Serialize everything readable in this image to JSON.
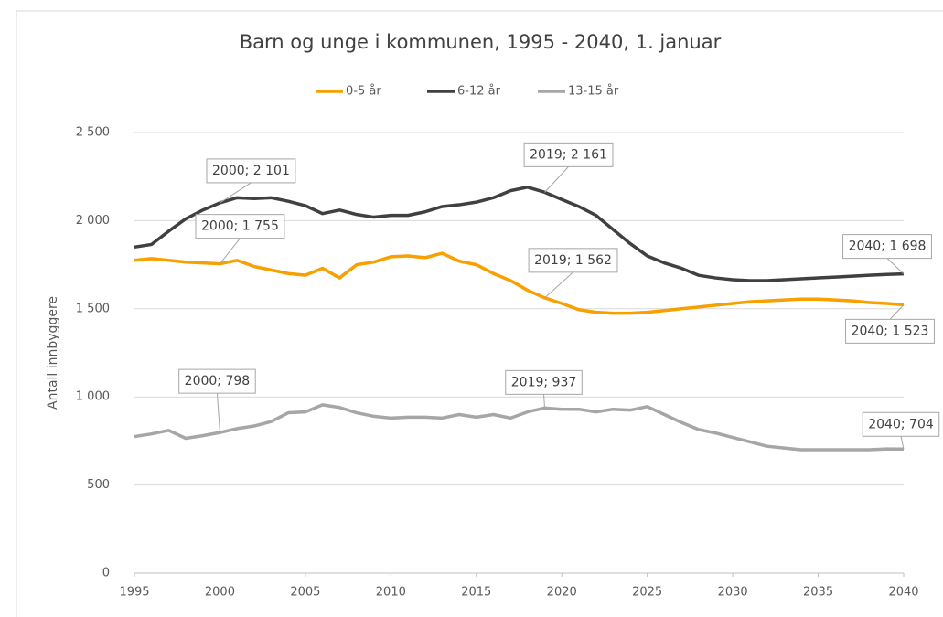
{
  "chart_data": {
    "type": "line",
    "title": "Barn og unge i kommunen, 1995 - 2040, 1. januar",
    "y_label": "Antall innbyggere",
    "x": [
      1995,
      1996,
      1997,
      1998,
      1999,
      2000,
      2001,
      2002,
      2003,
      2004,
      2005,
      2006,
      2007,
      2008,
      2009,
      2010,
      2011,
      2012,
      2013,
      2014,
      2015,
      2016,
      2017,
      2018,
      2019,
      2020,
      2021,
      2022,
      2023,
      2024,
      2025,
      2026,
      2027,
      2028,
      2029,
      2030,
      2031,
      2032,
      2033,
      2034,
      2035,
      2036,
      2037,
      2038,
      2039,
      2040
    ],
    "series": [
      {
        "name": "0-5 år",
        "color": "#f7a000",
        "values": [
          1775,
          1785,
          1775,
          1765,
          1760,
          1755,
          1775,
          1740,
          1720,
          1700,
          1690,
          1730,
          1675,
          1750,
          1765,
          1795,
          1800,
          1790,
          1815,
          1770,
          1750,
          1700,
          1660,
          1605,
          1562,
          1530,
          1495,
          1480,
          1475,
          1475,
          1480,
          1490,
          1500,
          1510,
          1520,
          1530,
          1540,
          1545,
          1550,
          1555,
          1555,
          1550,
          1545,
          1535,
          1530,
          1523
        ]
      },
      {
        "name": "6-12 år",
        "color": "#404040",
        "values": [
          1850,
          1865,
          1940,
          2010,
          2060,
          2101,
          2130,
          2125,
          2130,
          2110,
          2085,
          2040,
          2060,
          2035,
          2020,
          2030,
          2030,
          2050,
          2080,
          2090,
          2105,
          2130,
          2170,
          2190,
          2161,
          2120,
          2080,
          2030,
          1950,
          1870,
          1800,
          1760,
          1730,
          1690,
          1675,
          1665,
          1660,
          1660,
          1665,
          1670,
          1675,
          1680,
          1685,
          1690,
          1695,
          1698
        ]
      },
      {
        "name": "13-15 år",
        "color": "#a6a6a6",
        "values": [
          775,
          790,
          810,
          765,
          780,
          798,
          820,
          835,
          860,
          910,
          915,
          955,
          940,
          910,
          890,
          880,
          885,
          885,
          880,
          900,
          885,
          900,
          880,
          915,
          937,
          930,
          930,
          915,
          930,
          925,
          945,
          900,
          855,
          815,
          795,
          770,
          745,
          720,
          710,
          700,
          700,
          700,
          700,
          700,
          705,
          704
        ]
      }
    ],
    "xlim": [
      1995,
      2040
    ],
    "xticks": [
      1995,
      2000,
      2005,
      2010,
      2015,
      2020,
      2025,
      2030,
      2035,
      2040
    ],
    "ylim": [
      0,
      2500
    ],
    "yticks": [
      0,
      500,
      {
        "value": 1000,
        "label": "1 000"
      },
      {
        "value": 1500,
        "label": "1 500"
      },
      {
        "value": 2000,
        "label": "2 000"
      },
      {
        "value": 2500,
        "label": "2 500"
      }
    ],
    "grid": true,
    "legend": "top",
    "annotations": [
      {
        "label": "2000; 2 101",
        "x": 2000,
        "y": 2101
      },
      {
        "label": "2000; 1 755",
        "x": 2000,
        "y": 1755
      },
      {
        "label": "2019; 2 161",
        "x": 2019,
        "y": 2161
      },
      {
        "label": "2019; 1 562",
        "x": 2019,
        "y": 1562
      },
      {
        "label": "2040; 1 698",
        "x": 2040,
        "y": 1698
      },
      {
        "label": "2040; 1 523",
        "x": 2040,
        "y": 1523
      },
      {
        "label": "2000; 798",
        "x": 2000,
        "y": 798
      },
      {
        "label": "2019; 937",
        "x": 2019,
        "y": 937
      },
      {
        "label": "2040; 704",
        "x": 2040,
        "y": 704
      }
    ]
  }
}
